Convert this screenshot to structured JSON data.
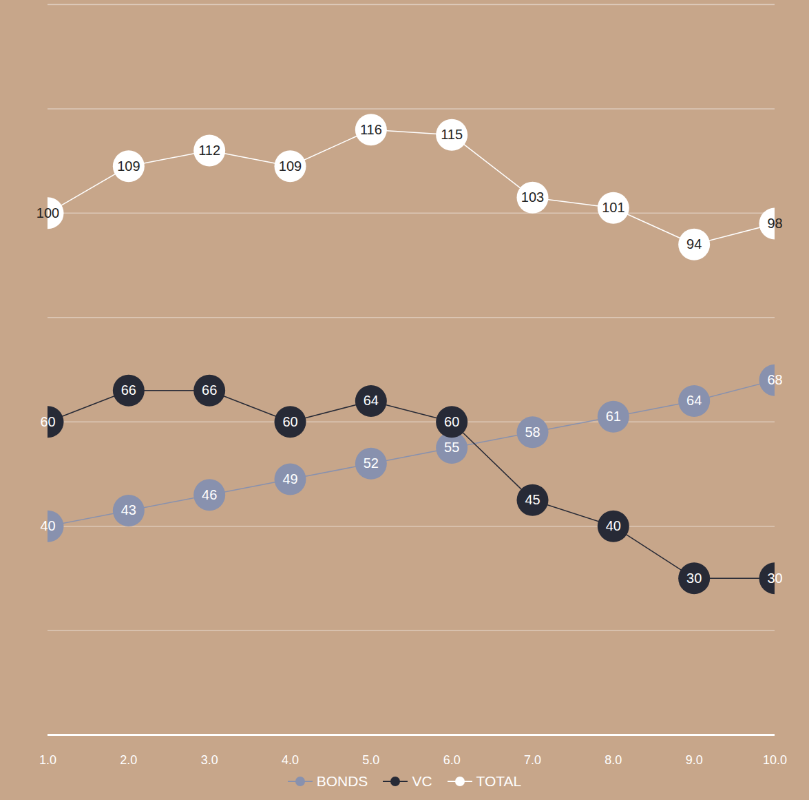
{
  "chart_data": {
    "type": "line",
    "x": [
      1,
      2,
      3,
      4,
      5,
      6,
      7,
      8,
      9,
      10
    ],
    "xlim": [
      1,
      10
    ],
    "xticks": [
      1,
      2,
      3,
      4,
      5,
      6,
      7,
      8,
      9,
      10
    ],
    "ylim": [
      0,
      140
    ],
    "yticks": [
      0,
      20,
      40,
      60,
      80,
      100,
      120,
      140
    ],
    "grid": true,
    "tick_labels": "x",
    "data_labels": true,
    "marker": "circle",
    "legend": "bottom",
    "series": [
      {
        "name": "BONDS",
        "color": "#8891ae",
        "values": [
          40,
          43,
          46,
          49,
          52,
          55,
          58,
          61,
          64,
          68
        ]
      },
      {
        "name": "VC",
        "color": "#272a36",
        "values": [
          60,
          66,
          66,
          60,
          64,
          60,
          45,
          40,
          30,
          30
        ]
      },
      {
        "name": "TOTAL",
        "color": "#ffffff",
        "values": [
          100,
          109,
          112,
          109,
          116,
          115,
          103,
          101,
          94,
          98
        ]
      }
    ]
  }
}
